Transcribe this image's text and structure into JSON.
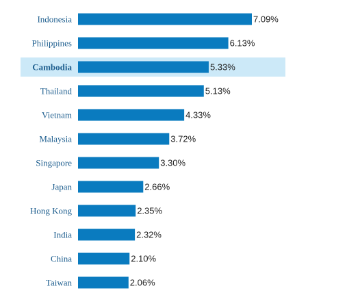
{
  "chart_data": {
    "type": "bar",
    "orientation": "horizontal",
    "categories": [
      "Indonesia",
      "Philippines",
      "Cambodia",
      "Thailand",
      "Vietnam",
      "Malaysia",
      "Singapore",
      "Japan",
      "Hong Kong",
      "India",
      "China",
      "Taiwan"
    ],
    "values": [
      7.09,
      6.13,
      5.33,
      5.13,
      4.33,
      3.72,
      3.3,
      2.66,
      2.35,
      2.32,
      2.1,
      2.06
    ],
    "value_labels": [
      "7.09%",
      "6.13%",
      "5.33%",
      "5.13%",
      "4.33%",
      "3.72%",
      "3.30%",
      "2.66%",
      "2.35%",
      "2.32%",
      "2.10%",
      "2.06%"
    ],
    "highlighted_category": "Cambodia",
    "title": "",
    "xlabel": "",
    "ylabel": "",
    "xlim": [
      0,
      7.09
    ],
    "grid": false,
    "legend": "none",
    "colors": {
      "bar": "#0a7bbf",
      "highlight_band": "#cce9f8",
      "category_text": "#1f5f8f",
      "value_text": "#222222"
    }
  }
}
